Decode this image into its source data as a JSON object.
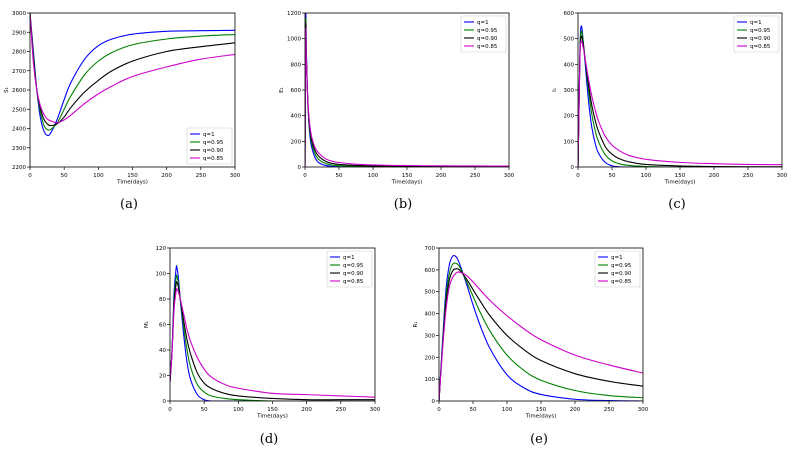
{
  "captions": [
    "(a)",
    "(b)",
    "(c)",
    "(d)",
    "(e)"
  ],
  "legend_labels": [
    "q=1",
    "q=0.95",
    "q=0.90",
    "q=0.85"
  ],
  "colors": {
    "q1": "#0000ff",
    "q095": "#008000",
    "q090": "#000000",
    "q085": "#cc00cc",
    "axis": "#000000"
  },
  "chart_data": [
    {
      "type": "line",
      "xlabel": "Time(days)",
      "ylabel": "S₁",
      "xlim": [
        0,
        300
      ],
      "ylim": [
        2200,
        3000
      ],
      "xticks": [
        0,
        50,
        100,
        150,
        200,
        250,
        300
      ],
      "yticks": [
        2200,
        2300,
        2400,
        2500,
        2600,
        2700,
        2800,
        2900,
        3000
      ],
      "legend": "lower-right",
      "series": [
        {
          "name": "q=1",
          "x": [
            0,
            5,
            10,
            15,
            20,
            25,
            30,
            40,
            50,
            60,
            80,
            100,
            120,
            150,
            200,
            250,
            300
          ],
          "values": [
            3000,
            2800,
            2600,
            2460,
            2390,
            2365,
            2375,
            2450,
            2550,
            2640,
            2760,
            2830,
            2865,
            2890,
            2905,
            2908,
            2910
          ]
        },
        {
          "name": "q=0.95",
          "x": [
            0,
            5,
            10,
            15,
            20,
            25,
            30,
            40,
            50,
            60,
            80,
            100,
            120,
            150,
            200,
            250,
            300
          ],
          "values": [
            3000,
            2780,
            2600,
            2490,
            2420,
            2395,
            2395,
            2430,
            2500,
            2570,
            2680,
            2750,
            2795,
            2835,
            2865,
            2880,
            2888
          ]
        },
        {
          "name": "q=0.90",
          "x": [
            0,
            5,
            10,
            15,
            20,
            25,
            30,
            40,
            50,
            60,
            80,
            100,
            120,
            150,
            200,
            250,
            300
          ],
          "values": [
            3000,
            2760,
            2600,
            2510,
            2450,
            2425,
            2415,
            2425,
            2460,
            2510,
            2590,
            2650,
            2700,
            2750,
            2800,
            2825,
            2845
          ]
        },
        {
          "name": "q=0.85",
          "x": [
            0,
            5,
            10,
            15,
            20,
            25,
            30,
            40,
            50,
            60,
            80,
            100,
            120,
            150,
            200,
            250,
            300
          ],
          "values": [
            3000,
            2740,
            2600,
            2520,
            2475,
            2450,
            2440,
            2430,
            2445,
            2470,
            2530,
            2580,
            2620,
            2670,
            2720,
            2760,
            2785
          ]
        }
      ]
    },
    {
      "type": "line",
      "xlabel": "Time(days)",
      "ylabel": "E₁",
      "xlim": [
        0,
        300
      ],
      "ylim": [
        0,
        1200
      ],
      "xticks": [
        0,
        50,
        100,
        150,
        200,
        250,
        300
      ],
      "yticks": [
        0,
        200,
        400,
        600,
        800,
        1000,
        1200
      ],
      "legend": "top-right",
      "series": [
        {
          "name": "q=1",
          "x": [
            0,
            1,
            2,
            4,
            6,
            8,
            10,
            15,
            20,
            30,
            40,
            50,
            75,
            100,
            150,
            200,
            250,
            300
          ],
          "values": [
            0,
            1160,
            900,
            520,
            320,
            210,
            150,
            70,
            35,
            12,
            5,
            2,
            0,
            0,
            0,
            0,
            0,
            0
          ]
        },
        {
          "name": "q=0.95",
          "x": [
            0,
            1,
            2,
            4,
            6,
            8,
            10,
            15,
            20,
            30,
            40,
            50,
            75,
            100,
            150,
            200,
            250,
            300
          ],
          "values": [
            0,
            1120,
            870,
            520,
            340,
            240,
            180,
            100,
            60,
            28,
            15,
            10,
            5,
            3,
            2,
            1,
            1,
            1
          ]
        },
        {
          "name": "q=0.90",
          "x": [
            0,
            1,
            2,
            4,
            6,
            8,
            10,
            15,
            20,
            30,
            40,
            50,
            75,
            100,
            150,
            200,
            250,
            300
          ],
          "values": [
            0,
            1080,
            850,
            530,
            360,
            265,
            205,
            125,
            85,
            45,
            28,
            20,
            12,
            8,
            5,
            4,
            3,
            3
          ]
        },
        {
          "name": "q=0.85",
          "x": [
            0,
            1,
            2,
            4,
            6,
            8,
            10,
            15,
            20,
            30,
            40,
            50,
            75,
            100,
            150,
            200,
            250,
            300
          ],
          "values": [
            0,
            1040,
            830,
            540,
            380,
            290,
            230,
            150,
            110,
            65,
            45,
            35,
            22,
            16,
            11,
            9,
            8,
            7
          ]
        }
      ]
    },
    {
      "type": "line",
      "xlabel": "Time(days)",
      "ylabel": "I₁",
      "xlim": [
        0,
        300
      ],
      "ylim": [
        0,
        600
      ],
      "xticks": [
        0,
        50,
        100,
        150,
        200,
        250,
        300
      ],
      "yticks": [
        0,
        100,
        200,
        300,
        400,
        500,
        600
      ],
      "legend": "top-right",
      "series": [
        {
          "name": "q=1",
          "x": [
            0,
            1,
            3,
            5,
            8,
            10,
            15,
            20,
            25,
            30,
            40,
            50,
            60,
            75,
            100,
            150,
            200,
            250,
            300
          ],
          "values": [
            0,
            150,
            470,
            550,
            480,
            420,
            270,
            160,
            95,
            55,
            18,
            5,
            1,
            0,
            0,
            0,
            0,
            0,
            0
          ]
        },
        {
          "name": "q=0.95",
          "x": [
            0,
            1,
            3,
            5,
            8,
            10,
            15,
            20,
            25,
            30,
            40,
            50,
            60,
            75,
            100,
            150,
            200,
            250,
            300
          ],
          "values": [
            0,
            150,
            460,
            530,
            480,
            430,
            310,
            210,
            145,
            100,
            48,
            24,
            13,
            6,
            2,
            0,
            0,
            0,
            0
          ]
        },
        {
          "name": "q=0.90",
          "x": [
            0,
            1,
            3,
            5,
            8,
            10,
            15,
            20,
            25,
            30,
            40,
            50,
            60,
            75,
            100,
            150,
            200,
            250,
            300
          ],
          "values": [
            0,
            150,
            450,
            510,
            470,
            430,
            330,
            245,
            185,
            140,
            80,
            50,
            33,
            20,
            10,
            4,
            2,
            1,
            1
          ]
        },
        {
          "name": "q=0.85",
          "x": [
            0,
            1,
            3,
            5,
            8,
            10,
            15,
            20,
            25,
            30,
            40,
            50,
            60,
            75,
            100,
            150,
            200,
            250,
            300
          ],
          "values": [
            0,
            150,
            440,
            490,
            460,
            430,
            350,
            280,
            225,
            180,
            120,
            85,
            65,
            45,
            30,
            18,
            13,
            10,
            9
          ]
        }
      ]
    },
    {
      "type": "line",
      "xlabel": "Time(days)",
      "ylabel": "M₁",
      "xlim": [
        0,
        300
      ],
      "ylim": [
        0,
        120
      ],
      "xticks": [
        0,
        50,
        100,
        150,
        200,
        250,
        300
      ],
      "yticks": [
        0,
        20,
        40,
        60,
        80,
        100,
        120
      ],
      "legend": "top-right",
      "series": [
        {
          "name": "q=1",
          "x": [
            0,
            3,
            6,
            9,
            10,
            12,
            15,
            20,
            25,
            30,
            40,
            50,
            60,
            80,
            100,
            150,
            200,
            250,
            300
          ],
          "values": [
            15,
            40,
            85,
            104,
            105,
            98,
            80,
            52,
            30,
            17,
            5,
            1,
            0,
            0,
            0,
            0,
            0,
            0,
            0
          ]
        },
        {
          "name": "q=0.95",
          "x": [
            0,
            3,
            6,
            9,
            10,
            12,
            15,
            20,
            25,
            30,
            40,
            50,
            60,
            80,
            100,
            150,
            200,
            250,
            300
          ],
          "values": [
            15,
            40,
            80,
            97,
            98,
            93,
            80,
            58,
            40,
            27,
            13,
            7,
            4,
            2,
            1,
            0,
            0,
            0,
            0
          ]
        },
        {
          "name": "q=0.90",
          "x": [
            0,
            3,
            6,
            9,
            10,
            12,
            15,
            20,
            25,
            30,
            40,
            50,
            60,
            80,
            100,
            150,
            200,
            250,
            300
          ],
          "values": [
            15,
            40,
            77,
            92,
            93,
            90,
            80,
            63,
            48,
            37,
            22,
            14,
            10,
            6,
            4,
            2,
            1,
            1,
            1
          ]
        },
        {
          "name": "q=0.85",
          "x": [
            0,
            3,
            6,
            9,
            10,
            12,
            15,
            20,
            25,
            30,
            40,
            50,
            60,
            80,
            100,
            150,
            200,
            250,
            300
          ],
          "values": [
            15,
            38,
            72,
            86,
            88,
            86,
            80,
            68,
            56,
            47,
            34,
            25,
            19,
            13,
            10,
            6,
            5,
            4,
            3
          ]
        }
      ]
    },
    {
      "type": "line",
      "xlabel": "Time(days)",
      "ylabel": "R₁",
      "xlim": [
        0,
        300
      ],
      "ylim": [
        0,
        700
      ],
      "xticks": [
        0,
        50,
        100,
        150,
        200,
        250,
        300
      ],
      "yticks": [
        0,
        100,
        200,
        300,
        400,
        500,
        600,
        700
      ],
      "legend": "top-right",
      "series": [
        {
          "name": "q=1",
          "x": [
            0,
            5,
            10,
            15,
            20,
            25,
            30,
            40,
            50,
            60,
            75,
            100,
            125,
            150,
            200,
            250,
            300
          ],
          "values": [
            0,
            260,
            500,
            620,
            662,
            660,
            630,
            540,
            440,
            350,
            240,
            120,
            60,
            30,
            8,
            2,
            0
          ]
        },
        {
          "name": "q=0.95",
          "x": [
            0,
            5,
            10,
            15,
            20,
            25,
            30,
            40,
            50,
            60,
            75,
            100,
            125,
            150,
            200,
            250,
            300
          ],
          "values": [
            0,
            250,
            470,
            580,
            625,
            630,
            615,
            550,
            480,
            410,
            320,
            210,
            140,
            95,
            48,
            25,
            15
          ]
        },
        {
          "name": "q=0.90",
          "x": [
            0,
            5,
            10,
            15,
            20,
            25,
            30,
            40,
            50,
            60,
            75,
            100,
            125,
            150,
            200,
            250,
            300
          ],
          "values": [
            0,
            240,
            440,
            550,
            595,
            605,
            600,
            560,
            510,
            460,
            390,
            300,
            235,
            185,
            125,
            90,
            68
          ]
        },
        {
          "name": "q=0.85",
          "x": [
            0,
            5,
            10,
            15,
            20,
            25,
            30,
            40,
            50,
            60,
            75,
            100,
            125,
            150,
            200,
            250,
            300
          ],
          "values": [
            0,
            225,
            410,
            520,
            565,
            585,
            590,
            575,
            545,
            510,
            460,
            390,
            330,
            280,
            210,
            165,
            128
          ]
        }
      ]
    }
  ]
}
